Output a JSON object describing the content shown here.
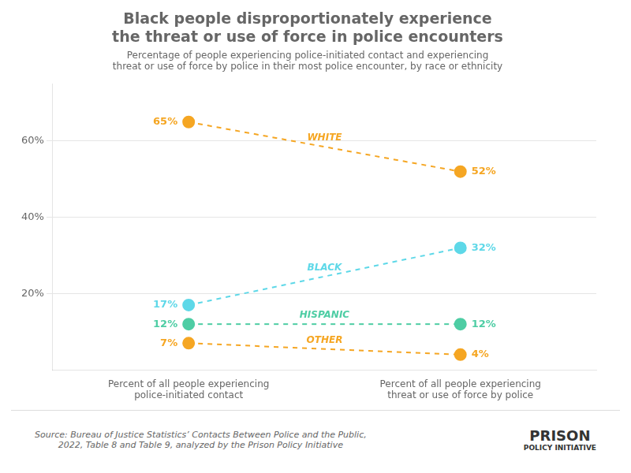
{
  "chart_data": {
    "type": "line",
    "title": "Black people disproportionately experience\nthe threat or use of force in police encounters",
    "subtitle": "Percentage of people experiencing police-initiated contact and experiencing\nthreat or use of force by police in their most police encounter, by race or ethnicity",
    "categories": [
      "Percent of all people experiencing\npolice-initiated contact",
      "Percent of all people experiencing\nthreat or use of force by police"
    ],
    "series": [
      {
        "name": "WHITE",
        "color": "#f5a623",
        "values": [
          65,
          52
        ],
        "value_labels": [
          "65%",
          "52%"
        ]
      },
      {
        "name": "BLACK",
        "color": "#5ed8e8",
        "values": [
          17,
          32
        ],
        "value_labels": [
          "17%",
          "32%"
        ]
      },
      {
        "name": "HISPANIC",
        "color": "#4ecda4",
        "values": [
          12,
          12
        ],
        "value_labels": [
          "12%",
          "12%"
        ]
      },
      {
        "name": "OTHER",
        "color": "#f5a623",
        "values": [
          7,
          4
        ],
        "value_labels": [
          "7%",
          "4%"
        ]
      }
    ],
    "ylim": [
      0,
      75
    ],
    "yticks": [
      {
        "value": 20,
        "label": "20%"
      },
      {
        "value": 40,
        "label": "40%"
      },
      {
        "value": 60,
        "label": "60%"
      }
    ],
    "grid": true,
    "data_labels": true,
    "line_style": "dashed",
    "marker": "circle",
    "source": "Source: Bureau of Justice Statistics’ Contacts Between Police and the Public,\n2022, Table 8 and Table 9, analyzed by the Prison Policy Initiative",
    "annotations": [
      "PRISON",
      "POLICY INITIATIVE"
    ]
  }
}
